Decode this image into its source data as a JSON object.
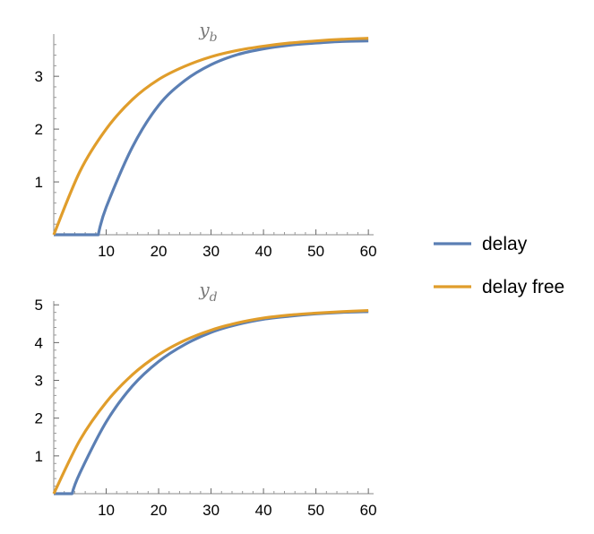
{
  "chart_data": [
    {
      "type": "line",
      "title": "y",
      "title_subscript": "b",
      "xlim": [
        0,
        61
      ],
      "ylim": [
        0,
        3.8
      ],
      "xticks": [
        10,
        20,
        30,
        40,
        50,
        60
      ],
      "yticks": [
        1,
        2,
        3
      ],
      "series": [
        {
          "name": "delay",
          "color": "#5b7fb4",
          "x": [
            0,
            8.5,
            10,
            15,
            20,
            25,
            30,
            35,
            40,
            45,
            50,
            55,
            60
          ],
          "y": [
            0,
            0,
            0.52,
            1.66,
            2.45,
            2.92,
            3.22,
            3.41,
            3.52,
            3.59,
            3.63,
            3.66,
            3.67
          ]
        },
        {
          "name": "delay free",
          "color": "#e09d2b",
          "x": [
            0,
            5,
            10,
            15,
            20,
            25,
            30,
            35,
            40,
            45,
            50,
            55,
            60
          ],
          "y": [
            0,
            1.2,
            2.0,
            2.56,
            2.94,
            3.19,
            3.37,
            3.49,
            3.57,
            3.63,
            3.67,
            3.7,
            3.72
          ]
        }
      ]
    },
    {
      "type": "line",
      "title": "y",
      "title_subscript": "d",
      "xlim": [
        0,
        61
      ],
      "ylim": [
        0,
        5.1
      ],
      "xticks": [
        10,
        20,
        30,
        40,
        50,
        60
      ],
      "yticks": [
        1,
        2,
        3,
        4,
        5
      ],
      "series": [
        {
          "name": "delay",
          "color": "#5b7fb4",
          "x": [
            0,
            3.5,
            5,
            10,
            15,
            20,
            25,
            30,
            35,
            40,
            45,
            50,
            55,
            60
          ],
          "y": [
            0,
            0,
            0.55,
            1.9,
            2.85,
            3.5,
            3.95,
            4.27,
            4.48,
            4.62,
            4.7,
            4.76,
            4.8,
            4.82
          ]
        },
        {
          "name": "delay free",
          "color": "#e09d2b",
          "x": [
            0,
            5,
            10,
            15,
            20,
            25,
            30,
            35,
            40,
            45,
            50,
            55,
            60
          ],
          "y": [
            0,
            1.42,
            2.42,
            3.15,
            3.68,
            4.06,
            4.33,
            4.52,
            4.65,
            4.73,
            4.78,
            4.82,
            4.85
          ]
        }
      ]
    }
  ],
  "legend": {
    "position": "right",
    "items": [
      {
        "label": "delay",
        "color": "#5b7fb4"
      },
      {
        "label": "delay free",
        "color": "#e09d2b"
      }
    ]
  }
}
